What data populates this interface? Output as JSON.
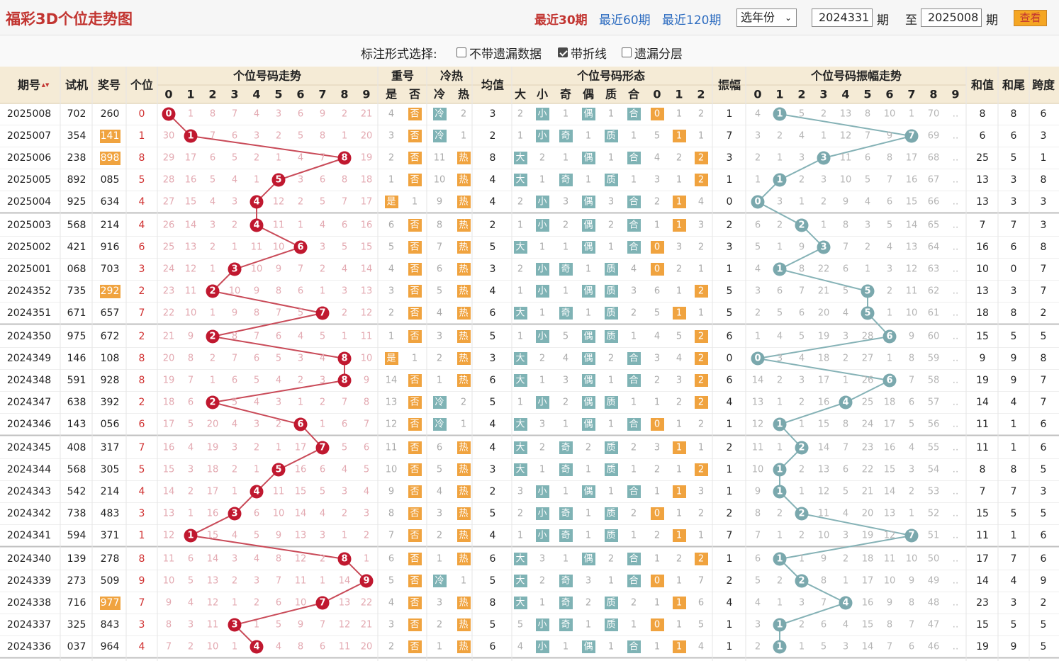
{
  "header": {
    "title": "福彩3D个位走势图",
    "link_30": "最近30期",
    "link_60": "最近60期",
    "link_120": "最近120期",
    "year_select": "选年份",
    "from_value": "2024331",
    "to_value": "2025008",
    "period_label": "期",
    "to_label": "至",
    "view_button": "查看"
  },
  "options": {
    "label": "标注形式选择:",
    "opt1": "不带遗漏数据",
    "opt2": "带折线",
    "opt3": "遗漏分层",
    "opt1_checked": false,
    "opt2_checked": true,
    "opt3_checked": false
  },
  "table_headers": {
    "period": "期号",
    "trial": "试机",
    "prize": "奖号",
    "unit": "个位",
    "digit_trend": "个位号码走势",
    "repeat": "重号",
    "hotcold": "冷热",
    "avg": "均值",
    "shape": "个位号码形态",
    "amp": "振幅",
    "amp_trend": "个位号码振幅走势",
    "sum": "和值",
    "sum_tail": "和尾",
    "span": "跨度"
  },
  "sub_headers": {
    "digits": [
      "0",
      "1",
      "2",
      "3",
      "4",
      "5",
      "6",
      "7",
      "8",
      "9"
    ],
    "repeat": [
      "是",
      "否"
    ],
    "hotcold": [
      "冷",
      "热"
    ],
    "shape": [
      "大",
      "小",
      "奇",
      "偶",
      "质",
      "合",
      "0",
      "1",
      "2"
    ],
    "amp": [
      "0",
      "1",
      "2",
      "3",
      "4",
      "5",
      "6",
      "7",
      "8",
      "9"
    ]
  },
  "colors": {
    "red_ball": "#c0182f",
    "blue_ball": "#7aa8ad",
    "orange": "#f0a33f",
    "teal": "#7fb3b5",
    "red_line": "#c94a58",
    "blue_line": "#85b2b6",
    "header_bg": "#f5ebd6"
  },
  "rows": [
    {
      "p": "2025008",
      "t": "702",
      "z": "260",
      "u": "0",
      "zh": false,
      "d": [
        "0",
        "1",
        "8",
        "7",
        "4",
        "3",
        "6",
        "9",
        "2",
        "21"
      ],
      "r": [
        "4",
        "否"
      ],
      "h": [
        "冷",
        "2"
      ],
      "a": "3",
      "s": [
        "2",
        "小",
        "1",
        "偶",
        "1",
        "合",
        "0",
        "1",
        "2"
      ],
      "am": "1",
      "ad": [
        "4",
        "1",
        "5",
        "2",
        "13",
        "8",
        "10",
        "1",
        "70",
        "‥"
      ],
      "hw": "8",
      "wz": "8",
      "kd": "6"
    },
    {
      "p": "2025007",
      "t": "354",
      "z": "141",
      "u": "1",
      "zh": true,
      "d": [
        "30",
        "1",
        "7",
        "6",
        "3",
        "2",
        "5",
        "8",
        "1",
        "20"
      ],
      "r": [
        "3",
        "否"
      ],
      "h": [
        "冷",
        "1"
      ],
      "a": "2",
      "s": [
        "1",
        "小",
        "奇",
        "1",
        "质",
        "1",
        "5",
        "1",
        "1"
      ],
      "am": "7",
      "ad": [
        "3",
        "2",
        "4",
        "1",
        "12",
        "7",
        "9",
        "7",
        "69",
        "‥"
      ],
      "hw": "6",
      "wz": "6",
      "kd": "3"
    },
    {
      "p": "2025006",
      "t": "238",
      "z": "898",
      "u": "8",
      "zh": true,
      "d": [
        "29",
        "17",
        "6",
        "5",
        "2",
        "1",
        "4",
        "7",
        "8",
        "19"
      ],
      "r": [
        "2",
        "否"
      ],
      "h": [
        "11",
        "热"
      ],
      "a": "8",
      "s": [
        "大",
        "2",
        "1",
        "偶",
        "1",
        "合",
        "4",
        "2",
        "2"
      ],
      "am": "3",
      "ad": [
        "2",
        "1",
        "3",
        "3",
        "11",
        "6",
        "8",
        "17",
        "68",
        "‥"
      ],
      "hw": "25",
      "wz": "5",
      "kd": "1"
    },
    {
      "p": "2025005",
      "t": "892",
      "z": "085",
      "u": "5",
      "zh": false,
      "d": [
        "28",
        "16",
        "5",
        "4",
        "1",
        "5",
        "3",
        "6",
        "8",
        "18"
      ],
      "r": [
        "1",
        "否"
      ],
      "h": [
        "10",
        "热"
      ],
      "a": "4",
      "s": [
        "大",
        "1",
        "奇",
        "1",
        "质",
        "1",
        "3",
        "1",
        "2"
      ],
      "am": "1",
      "ad": [
        "1",
        "1",
        "2",
        "3",
        "10",
        "5",
        "7",
        "16",
        "67",
        "‥"
      ],
      "hw": "13",
      "wz": "3",
      "kd": "8"
    },
    {
      "p": "2025004",
      "t": "925",
      "z": "634",
      "u": "4",
      "zh": false,
      "d": [
        "27",
        "15",
        "4",
        "3",
        "4",
        "12",
        "2",
        "5",
        "7",
        "17"
      ],
      "r": [
        "是",
        "1"
      ],
      "h": [
        "9",
        "热"
      ],
      "a": "4",
      "s": [
        "2",
        "小",
        "3",
        "偶",
        "3",
        "合",
        "2",
        "1",
        "4"
      ],
      "am": "0",
      "ad": [
        "0",
        "3",
        "1",
        "2",
        "9",
        "4",
        "6",
        "15",
        "66",
        "‥"
      ],
      "hw": "13",
      "wz": "3",
      "kd": "3"
    },
    {
      "p": "2025003",
      "t": "568",
      "z": "214",
      "u": "4",
      "zh": false,
      "d": [
        "26",
        "14",
        "3",
        "2",
        "4",
        "11",
        "1",
        "4",
        "6",
        "16"
      ],
      "r": [
        "6",
        "否"
      ],
      "h": [
        "8",
        "热"
      ],
      "a": "2",
      "s": [
        "1",
        "小",
        "2",
        "偶",
        "2",
        "合",
        "1",
        "1",
        "3"
      ],
      "am": "2",
      "ad": [
        "6",
        "2",
        "2",
        "1",
        "8",
        "3",
        "5",
        "14",
        "65",
        "‥"
      ],
      "hw": "7",
      "wz": "7",
      "kd": "3"
    },
    {
      "p": "2025002",
      "t": "421",
      "z": "916",
      "u": "6",
      "zh": false,
      "d": [
        "25",
        "13",
        "2",
        "1",
        "11",
        "10",
        "6",
        "3",
        "5",
        "15"
      ],
      "r": [
        "5",
        "否"
      ],
      "h": [
        "7",
        "热"
      ],
      "a": "5",
      "s": [
        "大",
        "1",
        "1",
        "偶",
        "1",
        "合",
        "0",
        "3",
        "2"
      ],
      "am": "3",
      "ad": [
        "5",
        "1",
        "9",
        "3",
        "7",
        "2",
        "4",
        "13",
        "64",
        "‥"
      ],
      "hw": "16",
      "wz": "6",
      "kd": "8"
    },
    {
      "p": "2025001",
      "t": "068",
      "z": "703",
      "u": "3",
      "zh": false,
      "d": [
        "24",
        "12",
        "1",
        "3",
        "10",
        "9",
        "7",
        "2",
        "4",
        "14"
      ],
      "r": [
        "4",
        "否"
      ],
      "h": [
        "6",
        "热"
      ],
      "a": "3",
      "s": [
        "2",
        "小",
        "奇",
        "1",
        "质",
        "4",
        "0",
        "2",
        "1"
      ],
      "am": "1",
      "ad": [
        "4",
        "1",
        "8",
        "22",
        "6",
        "1",
        "3",
        "12",
        "63",
        "‥"
      ],
      "hw": "10",
      "wz": "0",
      "kd": "7"
    },
    {
      "p": "2024352",
      "t": "735",
      "z": "292",
      "u": "2",
      "zh": true,
      "d": [
        "23",
        "11",
        "2",
        "10",
        "9",
        "8",
        "6",
        "1",
        "3",
        "13"
      ],
      "r": [
        "3",
        "否"
      ],
      "h": [
        "5",
        "热"
      ],
      "a": "4",
      "s": [
        "1",
        "小",
        "1",
        "偶",
        "质",
        "3",
        "6",
        "1",
        "2"
      ],
      "am": "5",
      "ad": [
        "3",
        "6",
        "7",
        "21",
        "5",
        "5",
        "2",
        "11",
        "62",
        "‥"
      ],
      "hw": "13",
      "wz": "3",
      "kd": "7"
    },
    {
      "p": "2024351",
      "t": "671",
      "z": "657",
      "u": "7",
      "zh": false,
      "d": [
        "22",
        "10",
        "1",
        "9",
        "8",
        "7",
        "5",
        "7",
        "2",
        "12"
      ],
      "r": [
        "2",
        "否"
      ],
      "h": [
        "4",
        "热"
      ],
      "a": "6",
      "s": [
        "大",
        "1",
        "奇",
        "1",
        "质",
        "2",
        "5",
        "1",
        "1"
      ],
      "am": "5",
      "ad": [
        "2",
        "5",
        "6",
        "20",
        "4",
        "5",
        "1",
        "10",
        "61",
        "‥"
      ],
      "hw": "18",
      "wz": "8",
      "kd": "2"
    },
    {
      "p": "2024350",
      "t": "975",
      "z": "672",
      "u": "2",
      "zh": false,
      "d": [
        "21",
        "9",
        "2",
        "8",
        "7",
        "6",
        "4",
        "5",
        "1",
        "11"
      ],
      "r": [
        "1",
        "否"
      ],
      "h": [
        "3",
        "热"
      ],
      "a": "5",
      "s": [
        "1",
        "小",
        "5",
        "偶",
        "质",
        "1",
        "4",
        "5",
        "2"
      ],
      "am": "6",
      "ad": [
        "1",
        "4",
        "5",
        "19",
        "3",
        "28",
        "6",
        "9",
        "60",
        "‥"
      ],
      "hw": "15",
      "wz": "5",
      "kd": "5"
    },
    {
      "p": "2024349",
      "t": "146",
      "z": "108",
      "u": "8",
      "zh": false,
      "d": [
        "20",
        "8",
        "2",
        "7",
        "6",
        "5",
        "3",
        "4",
        "8",
        "10"
      ],
      "r": [
        "是",
        "1"
      ],
      "h": [
        "2",
        "热"
      ],
      "a": "3",
      "s": [
        "大",
        "2",
        "4",
        "偶",
        "2",
        "合",
        "3",
        "4",
        "2"
      ],
      "am": "0",
      "ad": [
        "0",
        "3",
        "4",
        "18",
        "2",
        "27",
        "1",
        "8",
        "59",
        "‥"
      ],
      "hw": "9",
      "wz": "9",
      "kd": "8"
    },
    {
      "p": "2024348",
      "t": "591",
      "z": "928",
      "u": "8",
      "zh": false,
      "d": [
        "19",
        "7",
        "1",
        "6",
        "5",
        "4",
        "2",
        "3",
        "8",
        "9"
      ],
      "r": [
        "14",
        "否"
      ],
      "h": [
        "1",
        "热"
      ],
      "a": "6",
      "s": [
        "大",
        "1",
        "3",
        "偶",
        "1",
        "合",
        "2",
        "3",
        "2"
      ],
      "am": "6",
      "ad": [
        "14",
        "2",
        "3",
        "17",
        "1",
        "26",
        "6",
        "7",
        "58",
        "‥"
      ],
      "hw": "19",
      "wz": "9",
      "kd": "7"
    },
    {
      "p": "2024347",
      "t": "638",
      "z": "392",
      "u": "2",
      "zh": false,
      "d": [
        "18",
        "6",
        "2",
        "5",
        "4",
        "3",
        "1",
        "2",
        "7",
        "8"
      ],
      "r": [
        "13",
        "否"
      ],
      "h": [
        "冷",
        "2"
      ],
      "a": "5",
      "s": [
        "1",
        "小",
        "2",
        "偶",
        "质",
        "1",
        "1",
        "2",
        "2"
      ],
      "am": "4",
      "ad": [
        "13",
        "1",
        "2",
        "16",
        "4",
        "25",
        "18",
        "6",
        "57",
        "‥"
      ],
      "hw": "14",
      "wz": "4",
      "kd": "7"
    },
    {
      "p": "2024346",
      "t": "143",
      "z": "056",
      "u": "6",
      "zh": false,
      "d": [
        "17",
        "5",
        "20",
        "4",
        "3",
        "2",
        "6",
        "1",
        "6",
        "7"
      ],
      "r": [
        "12",
        "否"
      ],
      "h": [
        "冷",
        "1"
      ],
      "a": "4",
      "s": [
        "大",
        "3",
        "1",
        "偶",
        "1",
        "合",
        "0",
        "1",
        "2"
      ],
      "am": "1",
      "ad": [
        "12",
        "1",
        "1",
        "15",
        "8",
        "24",
        "17",
        "5",
        "56",
        "‥"
      ],
      "hw": "11",
      "wz": "1",
      "kd": "6"
    },
    {
      "p": "2024345",
      "t": "408",
      "z": "317",
      "u": "7",
      "zh": false,
      "d": [
        "16",
        "4",
        "19",
        "3",
        "2",
        "1",
        "17",
        "7",
        "5",
        "6"
      ],
      "r": [
        "11",
        "否"
      ],
      "h": [
        "6",
        "热"
      ],
      "a": "4",
      "s": [
        "大",
        "2",
        "奇",
        "2",
        "质",
        "2",
        "3",
        "1",
        "1"
      ],
      "am": "2",
      "ad": [
        "11",
        "1",
        "2",
        "14",
        "7",
        "23",
        "16",
        "4",
        "55",
        "‥"
      ],
      "hw": "11",
      "wz": "1",
      "kd": "6"
    },
    {
      "p": "2024344",
      "t": "568",
      "z": "305",
      "u": "5",
      "zh": false,
      "d": [
        "15",
        "3",
        "18",
        "2",
        "1",
        "5",
        "16",
        "6",
        "4",
        "5"
      ],
      "r": [
        "10",
        "否"
      ],
      "h": [
        "5",
        "热"
      ],
      "a": "3",
      "s": [
        "大",
        "1",
        "奇",
        "1",
        "质",
        "1",
        "2",
        "1",
        "2"
      ],
      "am": "1",
      "ad": [
        "10",
        "1",
        "2",
        "13",
        "6",
        "22",
        "15",
        "3",
        "54",
        "‥"
      ],
      "hw": "8",
      "wz": "8",
      "kd": "5"
    },
    {
      "p": "2024343",
      "t": "542",
      "z": "214",
      "u": "4",
      "zh": false,
      "d": [
        "14",
        "2",
        "17",
        "1",
        "4",
        "11",
        "15",
        "5",
        "3",
        "4"
      ],
      "r": [
        "9",
        "否"
      ],
      "h": [
        "4",
        "热"
      ],
      "a": "2",
      "s": [
        "3",
        "小",
        "1",
        "偶",
        "1",
        "合",
        "1",
        "1",
        "3"
      ],
      "am": "1",
      "ad": [
        "9",
        "1",
        "1",
        "12",
        "5",
        "21",
        "14",
        "2",
        "53",
        "‥"
      ],
      "hw": "7",
      "wz": "7",
      "kd": "3"
    },
    {
      "p": "2024342",
      "t": "738",
      "z": "483",
      "u": "3",
      "zh": false,
      "d": [
        "13",
        "1",
        "16",
        "3",
        "6",
        "10",
        "14",
        "4",
        "2",
        "3"
      ],
      "r": [
        "8",
        "否"
      ],
      "h": [
        "3",
        "热"
      ],
      "a": "5",
      "s": [
        "2",
        "小",
        "奇",
        "1",
        "质",
        "2",
        "0",
        "1",
        "2"
      ],
      "am": "2",
      "ad": [
        "8",
        "2",
        "2",
        "11",
        "4",
        "20",
        "13",
        "1",
        "52",
        "‥"
      ],
      "hw": "15",
      "wz": "5",
      "kd": "5"
    },
    {
      "p": "2024341",
      "t": "594",
      "z": "371",
      "u": "1",
      "zh": false,
      "d": [
        "12",
        "1",
        "15",
        "4",
        "5",
        "9",
        "13",
        "3",
        "1",
        "2"
      ],
      "r": [
        "7",
        "否"
      ],
      "h": [
        "2",
        "热"
      ],
      "a": "4",
      "s": [
        "1",
        "小",
        "奇",
        "1",
        "质",
        "1",
        "2",
        "1",
        "1"
      ],
      "am": "7",
      "ad": [
        "7",
        "1",
        "2",
        "10",
        "3",
        "19",
        "12",
        "7",
        "51",
        "‥"
      ],
      "hw": "11",
      "wz": "1",
      "kd": "6"
    },
    {
      "p": "2024340",
      "t": "139",
      "z": "278",
      "u": "8",
      "zh": false,
      "d": [
        "11",
        "6",
        "14",
        "3",
        "4",
        "8",
        "12",
        "2",
        "8",
        "1"
      ],
      "r": [
        "6",
        "否"
      ],
      "h": [
        "1",
        "热"
      ],
      "a": "6",
      "s": [
        "大",
        "3",
        "1",
        "偶",
        "2",
        "合",
        "1",
        "2",
        "2"
      ],
      "am": "1",
      "ad": [
        "6",
        "1",
        "1",
        "9",
        "2",
        "18",
        "11",
        "10",
        "50",
        "‥"
      ],
      "hw": "17",
      "wz": "7",
      "kd": "6"
    },
    {
      "p": "2024339",
      "t": "273",
      "z": "509",
      "u": "9",
      "zh": false,
      "d": [
        "10",
        "5",
        "13",
        "2",
        "3",
        "7",
        "11",
        "1",
        "14",
        "9"
      ],
      "r": [
        "5",
        "否"
      ],
      "h": [
        "冷",
        "1"
      ],
      "a": "5",
      "s": [
        "大",
        "2",
        "奇",
        "3",
        "1",
        "合",
        "0",
        "1",
        "7"
      ],
      "am": "2",
      "ad": [
        "5",
        "2",
        "2",
        "8",
        "1",
        "17",
        "10",
        "9",
        "49",
        "‥"
      ],
      "hw": "14",
      "wz": "4",
      "kd": "9"
    },
    {
      "p": "2024338",
      "t": "716",
      "z": "977",
      "u": "7",
      "zh": true,
      "d": [
        "9",
        "4",
        "12",
        "1",
        "2",
        "6",
        "10",
        "7",
        "13",
        "22"
      ],
      "r": [
        "4",
        "否"
      ],
      "h": [
        "3",
        "热"
      ],
      "a": "8",
      "s": [
        "大",
        "1",
        "奇",
        "2",
        "质",
        "2",
        "1",
        "1",
        "6"
      ],
      "am": "4",
      "ad": [
        "4",
        "1",
        "3",
        "7",
        "4",
        "16",
        "9",
        "8",
        "48",
        "‥"
      ],
      "hw": "23",
      "wz": "3",
      "kd": "2"
    },
    {
      "p": "2024337",
      "t": "325",
      "z": "843",
      "u": "3",
      "zh": false,
      "d": [
        "8",
        "3",
        "11",
        "3",
        "1",
        "5",
        "9",
        "7",
        "12",
        "21"
      ],
      "r": [
        "3",
        "否"
      ],
      "h": [
        "2",
        "热"
      ],
      "a": "5",
      "s": [
        "5",
        "小",
        "奇",
        "1",
        "质",
        "1",
        "0",
        "1",
        "5"
      ],
      "am": "1",
      "ad": [
        "3",
        "1",
        "2",
        "6",
        "4",
        "15",
        "8",
        "7",
        "47",
        "‥"
      ],
      "hw": "15",
      "wz": "5",
      "kd": "5"
    },
    {
      "p": "2024336",
      "t": "037",
      "z": "964",
      "u": "4",
      "zh": false,
      "d": [
        "7",
        "2",
        "10",
        "1",
        "4",
        "4",
        "8",
        "6",
        "11",
        "20"
      ],
      "r": [
        "2",
        "否"
      ],
      "h": [
        "1",
        "热"
      ],
      "a": "6",
      "s": [
        "4",
        "小",
        "1",
        "偶",
        "1",
        "合",
        "1",
        "1",
        "4"
      ],
      "am": "1",
      "ad": [
        "2",
        "1",
        "1",
        "5",
        "3",
        "14",
        "7",
        "6",
        "46",
        "‥"
      ],
      "hw": "19",
      "wz": "9",
      "kd": "5"
    }
  ]
}
